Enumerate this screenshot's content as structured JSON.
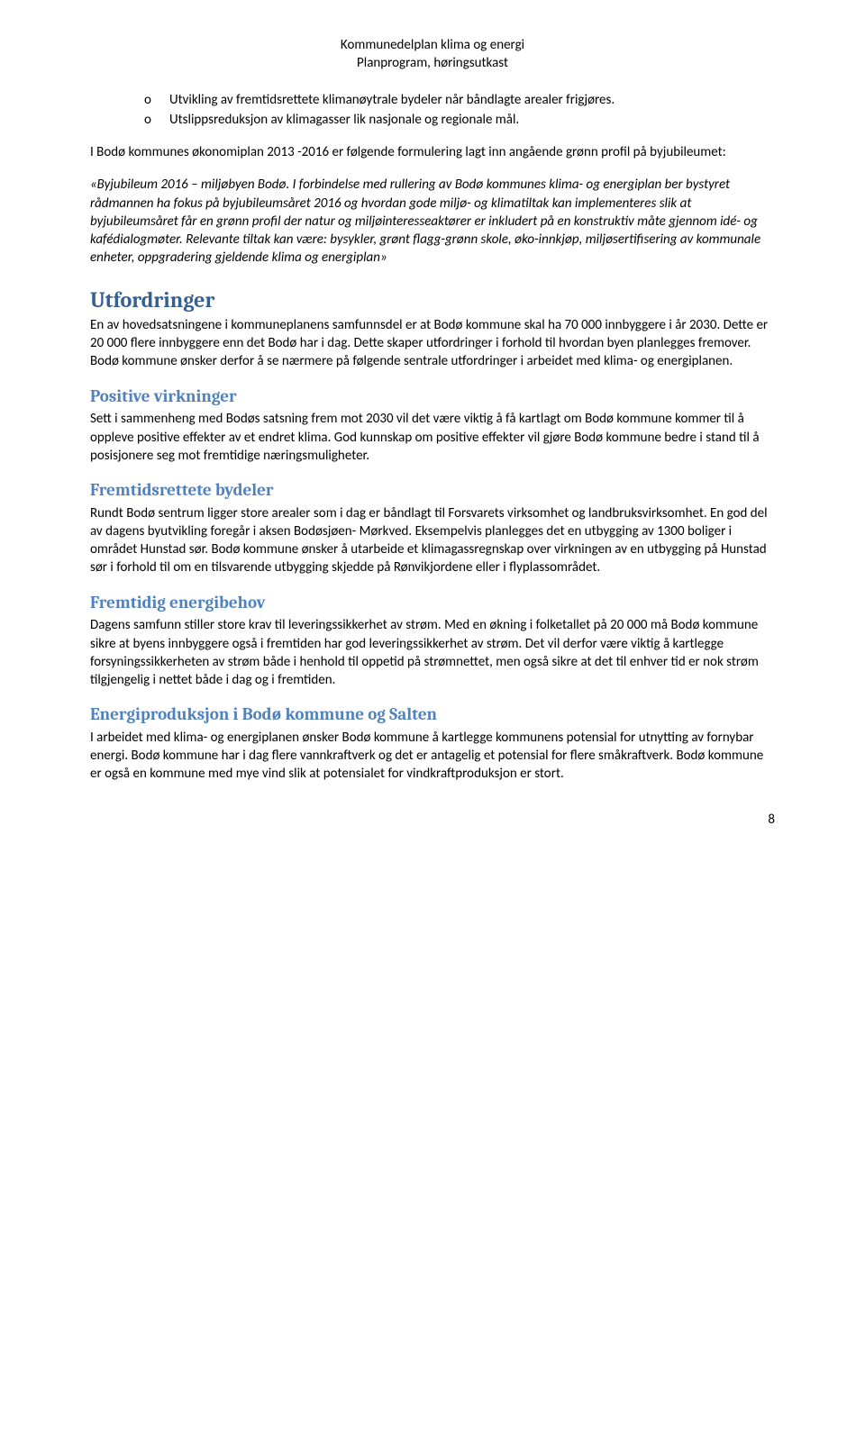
{
  "header": {
    "line1": "Kommunedelplan klima og energi",
    "line2": "Planprogram, høringsutkast"
  },
  "bullets": {
    "marker": "o",
    "items": [
      "Utvikling av fremtidsrettete klimanøytrale bydeler når båndlagte arealer frigjøres.",
      "Utslippsreduksjon av klimagasser lik nasjonale og regionale mål."
    ]
  },
  "intro_para": "I Bodø kommunes økonomiplan 2013 -2016 er følgende formulering lagt inn angående grønn profil på byjubileumet:",
  "quote_para": "«Byjubileum 2016 – miljøbyen Bodø. I forbindelse med rullering av Bodø kommunes klima- og energiplan ber bystyret rådmannen ha fokus på byjubileumsåret 2016 og hvordan gode miljø- og klimatiltak kan implementeres slik at byjubileumsåret får en grønn profil der natur og miljøinteresseaktører er inkludert på en konstruktiv måte gjennom idé- og kafédialogmøter. Relevante tiltak kan være: bysykler, grønt flagg-grønn skole, øko-innkjøp, miljøsertifisering av kommunale enheter, oppgradering gjeldende klima og energiplan»",
  "sections": {
    "utfordringer": {
      "title": "Utfordringer",
      "body": "En av hovedsatsningene i kommuneplanens samfunnsdel er at Bodø kommune skal ha 70 000 innbyggere i år 2030. Dette er 20 000 flere innbyggere enn det Bodø har i dag. Dette skaper utfordringer i forhold til hvordan byen planlegges fremover. Bodø kommune ønsker derfor å se nærmere på følgende sentrale utfordringer i arbeidet med klima- og energiplanen."
    },
    "positive": {
      "title": "Positive virkninger",
      "body": "Sett i sammenheng med Bodøs satsning frem mot 2030 vil det være viktig å få kartlagt om Bodø kommune kommer til å oppleve positive effekter av et endret klima. God kunnskap om positive effekter vil gjøre Bodø kommune bedre i stand til å posisjonere seg mot fremtidige næringsmuligheter."
    },
    "fremtidsrettete": {
      "title": "Fremtidsrettete bydeler",
      "body": "Rundt Bodø sentrum ligger store arealer som i dag er båndlagt til Forsvarets virksomhet og landbruksvirksomhet. En god del av dagens byutvikling foregår i aksen Bodøsjøen- Mørkved. Eksempelvis planlegges det en utbygging av 1300 boliger i området Hunstad sør. Bodø kommune ønsker å utarbeide et klimagassregnskap over virkningen av en utbygging på Hunstad sør i forhold til om en tilsvarende utbygging skjedde på Rønvikjordene eller i flyplassområdet."
    },
    "energibehov": {
      "title": "Fremtidig energibehov",
      "body": "Dagens samfunn stiller store krav til leveringssikkerhet av strøm.  Med en økning i folketallet på 20 000 må Bodø kommune sikre at byens innbyggere også i fremtiden har god leveringssikkerhet av strøm. Det vil derfor være viktig å kartlegge forsyningssikkerheten av strøm både i henhold til oppetid på strømnettet, men også sikre at det til enhver tid er nok strøm tilgjengelig i nettet både i dag og i fremtiden."
    },
    "energiproduksjon": {
      "title": "Energiproduksjon i Bodø kommune og Salten",
      "body": "I arbeidet med klima- og energiplanen ønsker Bodø kommune å kartlegge kommunens potensial for utnytting av fornybar energi. Bodø kommune har i dag flere vannkraftverk og det er antagelig et potensial for flere småkraftverk. Bodø kommune er også en kommune med mye vind slik at potensialet for vindkraftproduksjon er stort."
    }
  },
  "page_number": "8"
}
